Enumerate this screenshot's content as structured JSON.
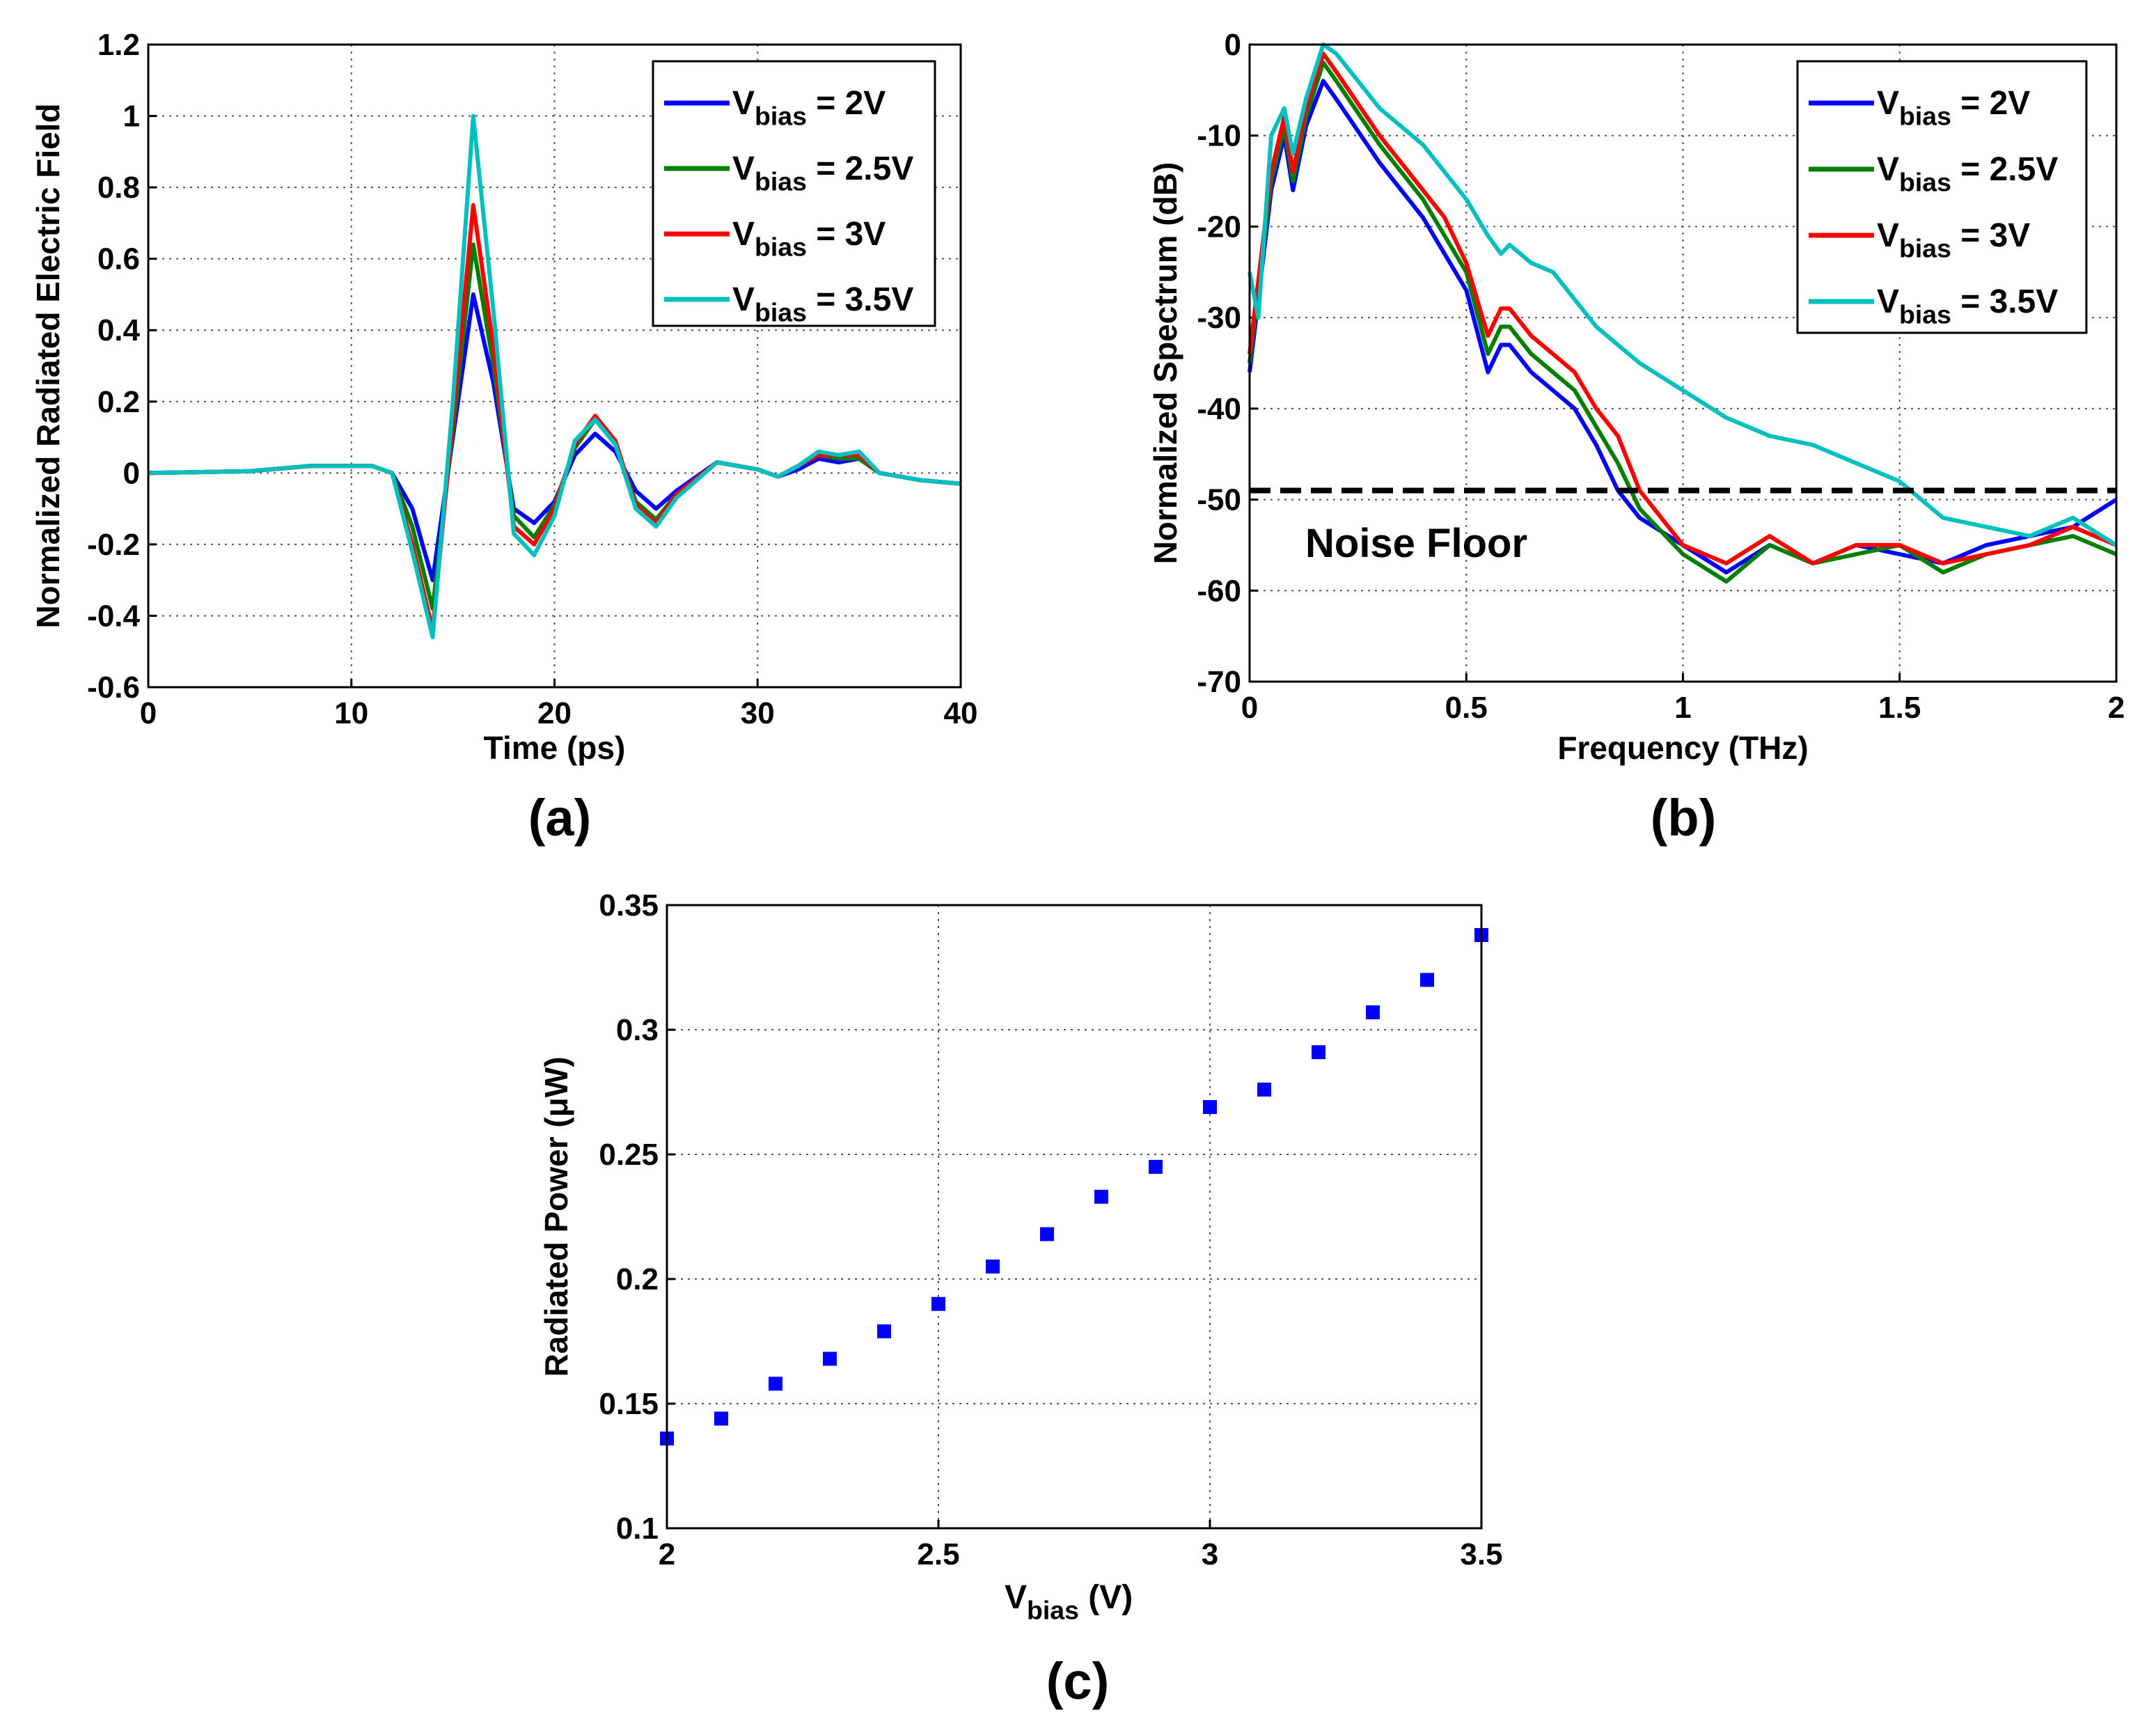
{
  "chart_data": [
    {
      "panel_label": "(a)",
      "type": "line",
      "xlabel": "Time (ps)",
      "ylabel": "Normalized Radiated Electric Field",
      "xlim": [
        0,
        40
      ],
      "ylim": [
        -0.6,
        1.2
      ],
      "xticks": [
        "0",
        "10",
        "20",
        "30",
        "40"
      ],
      "yticks": [
        "-0.6",
        "-0.4",
        "-0.2",
        "0",
        "0.2",
        "0.4",
        "0.6",
        "0.8",
        "1",
        "1.2"
      ],
      "grid": true,
      "legend_position": "top-right",
      "legend_entries": [
        {
          "v": "V",
          "sub": "bias",
          "rest": " = 2V"
        },
        {
          "v": "V",
          "sub": "bias",
          "rest": " = 2.5V"
        },
        {
          "v": "V",
          "sub": "bias",
          "rest": " = 3V"
        },
        {
          "v": "V",
          "sub": "bias",
          "rest": " = 3.5V"
        }
      ],
      "series": [
        {
          "color": "#0000ff",
          "x": [
            0,
            5,
            8,
            11,
            12,
            13,
            14,
            15,
            16,
            17,
            18,
            19,
            20,
            21,
            22,
            23,
            24,
            25,
            26,
            28,
            30,
            31,
            32,
            33,
            34,
            35,
            36,
            38,
            40
          ],
          "y": [
            0,
            0.005,
            0.02,
            0.02,
            0,
            -0.1,
            -0.3,
            0.1,
            0.5,
            0.25,
            -0.1,
            -0.14,
            -0.08,
            0.05,
            0.11,
            0.06,
            -0.05,
            -0.1,
            -0.05,
            0.03,
            0.01,
            -0.01,
            0.01,
            0.04,
            0.03,
            0.04,
            0,
            -0.02,
            -0.03
          ]
        },
        {
          "color": "#007f00",
          "x": [
            0,
            5,
            8,
            11,
            12,
            13,
            14,
            15,
            16,
            17,
            18,
            19,
            20,
            21,
            22,
            23,
            24,
            25,
            26,
            28,
            30,
            31,
            32,
            33,
            34,
            35,
            36,
            38,
            40
          ],
          "y": [
            0,
            0.005,
            0.02,
            0.02,
            0,
            -0.15,
            -0.38,
            0.12,
            0.64,
            0.3,
            -0.12,
            -0.18,
            -0.09,
            0.07,
            0.15,
            0.08,
            -0.08,
            -0.13,
            -0.06,
            0.03,
            0.01,
            -0.01,
            0.02,
            0.05,
            0.04,
            0.04,
            0,
            -0.02,
            -0.03
          ]
        },
        {
          "color": "#ff0000",
          "x": [
            0,
            5,
            8,
            11,
            12,
            13,
            14,
            15,
            16,
            17,
            18,
            19,
            20,
            21,
            22,
            23,
            24,
            25,
            26,
            28,
            30,
            31,
            32,
            33,
            34,
            35,
            36,
            38,
            40
          ],
          "y": [
            0,
            0.005,
            0.02,
            0.02,
            0,
            -0.2,
            -0.44,
            0.15,
            0.75,
            0.35,
            -0.15,
            -0.2,
            -0.1,
            0.08,
            0.16,
            0.09,
            -0.09,
            -0.14,
            -0.06,
            0.03,
            0.01,
            -0.01,
            0.02,
            0.05,
            0.05,
            0.05,
            0,
            -0.02,
            -0.03
          ]
        },
        {
          "color": "#00bfbf",
          "x": [
            0,
            5,
            8,
            11,
            12,
            13,
            14,
            15,
            16,
            17,
            18,
            19,
            20,
            21,
            22,
            23,
            24,
            25,
            26,
            28,
            30,
            31,
            32,
            33,
            34,
            35,
            36,
            38,
            40
          ],
          "y": [
            0,
            0.005,
            0.02,
            0.02,
            0,
            -0.22,
            -0.46,
            0.2,
            1.0,
            0.45,
            -0.17,
            -0.23,
            -0.12,
            0.09,
            0.15,
            0.08,
            -0.1,
            -0.15,
            -0.07,
            0.03,
            0.01,
            -0.01,
            0.02,
            0.06,
            0.05,
            0.06,
            0,
            -0.02,
            -0.03
          ]
        }
      ]
    },
    {
      "panel_label": "(b)",
      "type": "line",
      "xlabel": "Frequency (THz)",
      "ylabel": "Normalized Spectrum (dB)",
      "xlim": [
        0,
        2
      ],
      "ylim": [
        -70,
        0
      ],
      "xticks": [
        "0",
        "0.5",
        "1",
        "1.5",
        "2"
      ],
      "yticks": [
        "-70",
        "-60",
        "-50",
        "-40",
        "-30",
        "-20",
        "-10",
        "0"
      ],
      "grid": true,
      "legend_position": "top-right",
      "annotation": "Noise Floor",
      "noise_floor_db": -49,
      "legend_entries": [
        {
          "v": "V",
          "sub": "bias",
          "rest": " = 2V"
        },
        {
          "v": "V",
          "sub": "bias",
          "rest": " = 2.5V"
        },
        {
          "v": "V",
          "sub": "bias",
          "rest": " = 3V"
        },
        {
          "v": "V",
          "sub": "bias",
          "rest": " = 3.5V"
        }
      ],
      "series": [
        {
          "color": "#0000ff",
          "x": [
            0,
            0.02,
            0.05,
            0.08,
            0.1,
            0.13,
            0.17,
            0.2,
            0.3,
            0.4,
            0.45,
            0.5,
            0.55,
            0.58,
            0.6,
            0.65,
            0.7,
            0.75,
            0.8,
            0.85,
            0.9,
            1.0,
            1.1,
            1.2,
            1.3,
            1.4,
            1.5,
            1.6,
            1.7,
            1.8,
            1.9,
            2.0
          ],
          "y": [
            -36,
            -28,
            -16,
            -10,
            -16,
            -9,
            -4,
            -6,
            -13,
            -19,
            -23,
            -27,
            -36,
            -33,
            -33,
            -36,
            -38,
            -40,
            -44,
            -49,
            -52,
            -55,
            -58,
            -55,
            -57,
            -55,
            -56,
            -57,
            -55,
            -54,
            -53,
            -50
          ]
        },
        {
          "color": "#007f00",
          "x": [
            0,
            0.02,
            0.05,
            0.08,
            0.1,
            0.13,
            0.17,
            0.2,
            0.3,
            0.4,
            0.45,
            0.5,
            0.55,
            0.58,
            0.6,
            0.65,
            0.7,
            0.75,
            0.8,
            0.85,
            0.9,
            1.0,
            1.1,
            1.2,
            1.3,
            1.4,
            1.5,
            1.6,
            1.7,
            1.8,
            1.9,
            2.0
          ],
          "y": [
            -35,
            -27,
            -15,
            -9,
            -15,
            -8,
            -2,
            -4,
            -11,
            -17,
            -21,
            -25,
            -34,
            -31,
            -31,
            -34,
            -36,
            -38,
            -42,
            -46,
            -51,
            -56,
            -59,
            -55,
            -57,
            -56,
            -55,
            -58,
            -56,
            -55,
            -54,
            -56
          ]
        },
        {
          "color": "#ff0000",
          "x": [
            0,
            0.02,
            0.05,
            0.08,
            0.1,
            0.13,
            0.17,
            0.2,
            0.3,
            0.4,
            0.45,
            0.5,
            0.55,
            0.58,
            0.6,
            0.65,
            0.7,
            0.75,
            0.8,
            0.85,
            0.9,
            1.0,
            1.1,
            1.2,
            1.3,
            1.4,
            1.5,
            1.6,
            1.7,
            1.8,
            1.9,
            2.0
          ],
          "y": [
            -34,
            -26,
            -14,
            -8,
            -14,
            -7,
            -1,
            -3,
            -10,
            -16,
            -19,
            -24,
            -32,
            -29,
            -29,
            -32,
            -34,
            -36,
            -40,
            -43,
            -49,
            -55,
            -57,
            -54,
            -57,
            -55,
            -55,
            -57,
            -56,
            -55,
            -53,
            -55
          ]
        },
        {
          "color": "#00bfbf",
          "x": [
            0,
            0.02,
            0.05,
            0.08,
            0.1,
            0.13,
            0.17,
            0.2,
            0.3,
            0.4,
            0.45,
            0.5,
            0.55,
            0.58,
            0.6,
            0.65,
            0.7,
            0.75,
            0.8,
            0.85,
            0.9,
            1.0,
            1.1,
            1.2,
            1.3,
            1.4,
            1.5,
            1.6,
            1.7,
            1.8,
            1.9,
            2.0
          ],
          "y": [
            -25,
            -30,
            -10,
            -7,
            -12,
            -6,
            0,
            -1,
            -7,
            -11,
            -14,
            -17,
            -21,
            -23,
            -22,
            -24,
            -25,
            -28,
            -31,
            -33,
            -35,
            -38,
            -41,
            -43,
            -44,
            -46,
            -48,
            -52,
            -53,
            -54,
            -52,
            -55
          ]
        }
      ]
    },
    {
      "panel_label": "(c)",
      "type": "scatter",
      "xlabel": {
        "v": "V",
        "sub": "bias",
        "rest": " (V)"
      },
      "ylabel": "Radiated Power (μW)",
      "xlim": [
        2,
        3.5
      ],
      "ylim": [
        0.1,
        0.35
      ],
      "xticks": [
        "2",
        "2.5",
        "3",
        "3.5"
      ],
      "yticks": [
        "0.1",
        "0.15",
        "0.2",
        "0.25",
        "0.3",
        "0.35"
      ],
      "grid": true,
      "marker_color": "#0000ff",
      "x": [
        2.0,
        2.1,
        2.2,
        2.3,
        2.4,
        2.5,
        2.6,
        2.7,
        2.8,
        2.9,
        3.0,
        3.1,
        3.2,
        3.3,
        3.4,
        3.5
      ],
      "y": [
        0.136,
        0.144,
        0.158,
        0.168,
        0.179,
        0.19,
        0.205,
        0.218,
        0.233,
        0.245,
        0.269,
        0.276,
        0.291,
        0.307,
        0.32,
        0.338
      ]
    }
  ]
}
